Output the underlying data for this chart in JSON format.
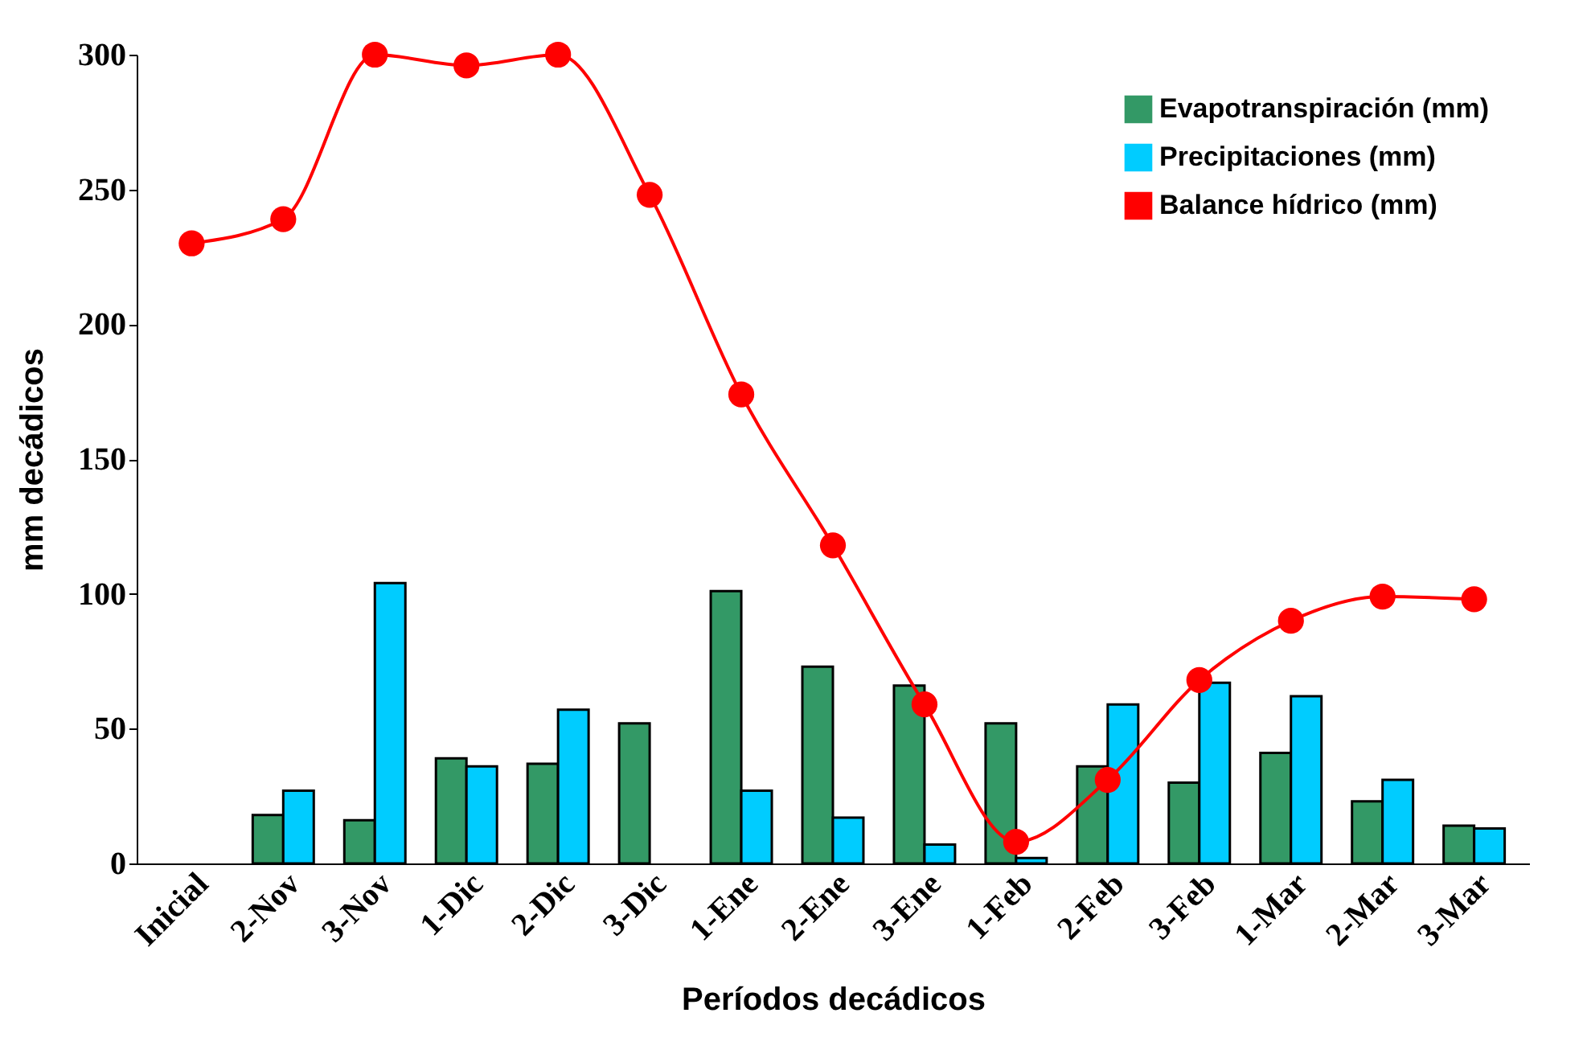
{
  "chart_data": {
    "type": "bar",
    "xlabel": "Períodos decádicos",
    "ylabel": "mm decádicos",
    "categories": [
      "Inicial",
      "2-Nov",
      "3-Nov",
      "1-Dic",
      "2-Dic",
      "3-Dic",
      "1-Ene",
      "2-Ene",
      "3-Ene",
      "1-Feb",
      "2-Feb",
      "3-Feb",
      "1-Mar",
      "2-Mar",
      "3-Mar"
    ],
    "series": [
      {
        "name": "Evapotranspiración (mm)",
        "color": "#339966",
        "values": [
          null,
          18,
          16,
          39,
          37,
          52,
          101,
          73,
          66,
          52,
          36,
          30,
          41,
          23,
          14
        ]
      },
      {
        "name": "Precipitaciones (mm)",
        "color": "#00ccff",
        "values": [
          null,
          27,
          104,
          36,
          57,
          null,
          27,
          17,
          7,
          2,
          59,
          67,
          62,
          31,
          13
        ]
      },
      {
        "name": "Balance hídrico (mm)",
        "color": "#ff0000",
        "type": "line",
        "values": [
          230,
          239,
          300,
          296,
          300,
          248,
          174,
          118,
          59,
          8,
          31,
          68,
          90,
          99,
          98
        ]
      }
    ],
    "ylim": [
      0,
      300
    ],
    "yticks": [
      0,
      50,
      100,
      150,
      200,
      250,
      300
    ],
    "grid": false,
    "legend": "top right",
    "marker": "circle",
    "line_style": "solid"
  }
}
